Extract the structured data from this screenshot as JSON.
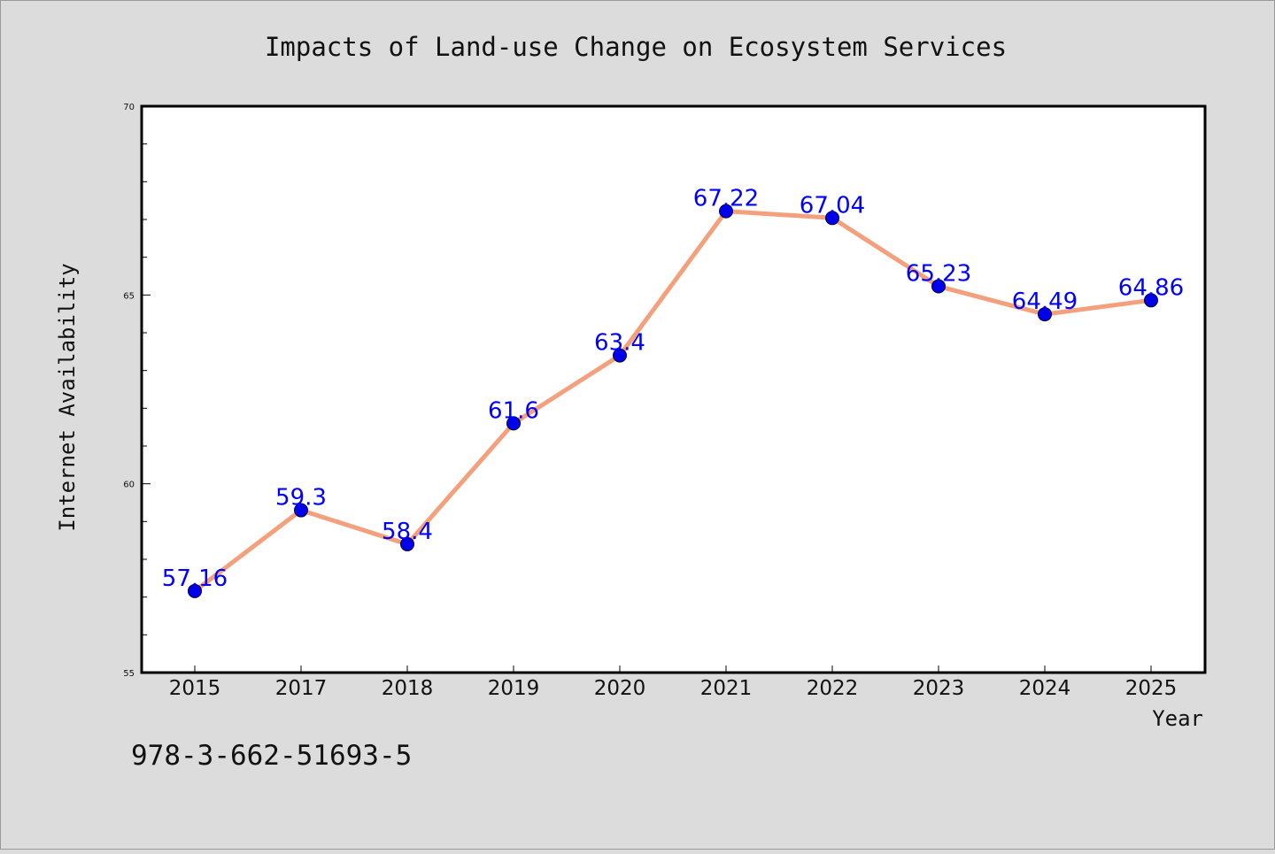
{
  "chart_data": {
    "type": "line",
    "title": "Impacts of Land-use Change on Ecosystem Services",
    "xlabel": "Year",
    "ylabel": "Internet Availability",
    "categories": [
      "2015",
      "2017",
      "2018",
      "2019",
      "2020",
      "2021",
      "2022",
      "2023",
      "2024",
      "2025"
    ],
    "values": [
      57.16,
      59.3,
      58.4,
      61.6,
      63.4,
      67.22,
      67.04,
      65.23,
      64.49,
      64.86
    ],
    "data_labels": [
      "57.16",
      "59.3",
      "58.4",
      "61.6",
      "63.4",
      "67.22",
      "67.04",
      "65.23",
      "64.49",
      "64.86"
    ],
    "ylim": [
      55,
      70
    ],
    "y_ticks": [
      "55",
      "60",
      "65",
      "70"
    ],
    "y_minor_step": 1,
    "grid": false,
    "legend": "none",
    "colors": {
      "line": "#f4a07c",
      "marker": "#0000ee",
      "label": "#0000ff",
      "background": "#dcdcdc",
      "plot_background": "#ffffff"
    }
  },
  "footnote": "978-3-662-51693-5"
}
